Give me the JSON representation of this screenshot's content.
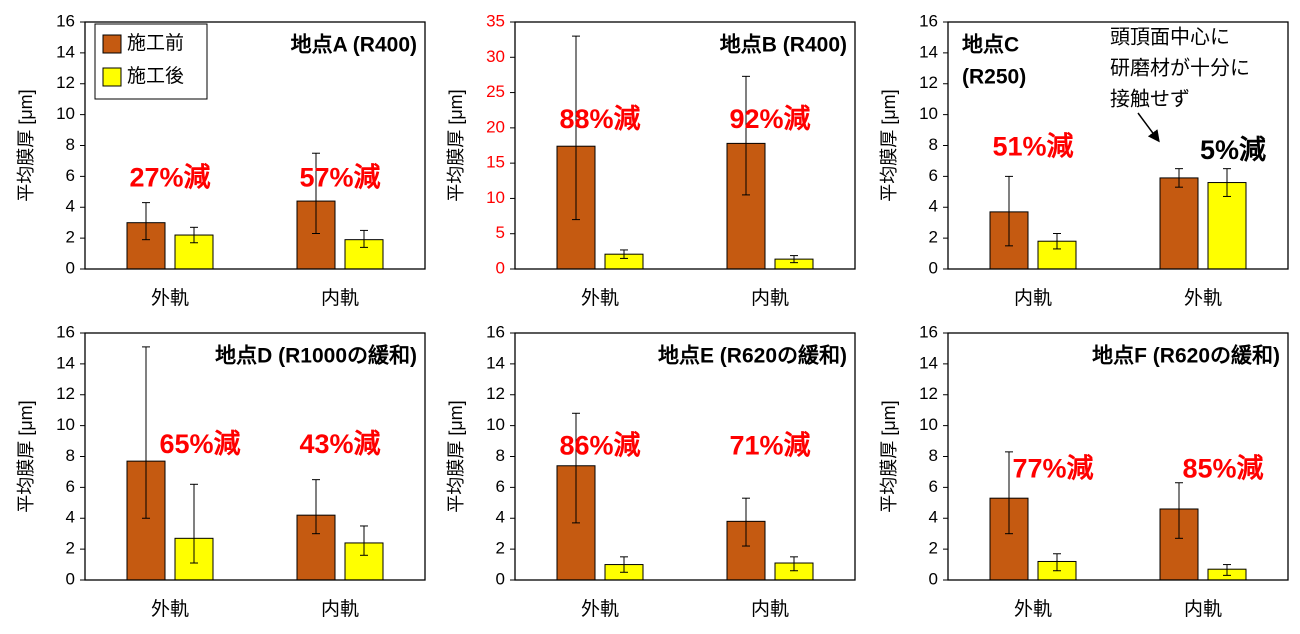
{
  "chart_data": [
    {
      "type": "bar",
      "title": "地点A (R400)",
      "ylabel": "平均膜厚 [μm]",
      "categories": [
        "外軌",
        "内軌"
      ],
      "series": [
        {
          "name": "施工前",
          "color": "#c55a11",
          "values": [
            3.0,
            4.4
          ],
          "error_low": [
            1.9,
            2.3
          ],
          "error_high": [
            4.3,
            7.5
          ]
        },
        {
          "name": "施工後",
          "color": "#ffff00",
          "values": [
            2.2,
            1.9
          ],
          "error_low": [
            1.7,
            1.4
          ],
          "error_high": [
            2.7,
            2.5
          ]
        }
      ],
      "reduction_labels": [
        "27%減",
        "57%減"
      ],
      "reduction_colors": [
        "#ff0000",
        "#ff0000"
      ],
      "ylim": [
        0,
        16
      ],
      "yticks": [
        0,
        2,
        4,
        6,
        8,
        10,
        12,
        14,
        16
      ],
      "tick_color": "#000000",
      "legend": "top-left"
    },
    {
      "type": "bar",
      "title": "地点B (R400)",
      "ylabel": "平均膜厚 [μm]",
      "categories": [
        "外軌",
        "内軌"
      ],
      "series": [
        {
          "name": "施工前",
          "color": "#c55a11",
          "values": [
            17.4,
            17.8
          ],
          "error_low": [
            7.0,
            10.5
          ],
          "error_high": [
            33.0,
            27.3
          ]
        },
        {
          "name": "施工後",
          "color": "#ffff00",
          "values": [
            2.1,
            1.4
          ],
          "error_low": [
            1.5,
            0.9
          ],
          "error_high": [
            2.7,
            1.9
          ]
        }
      ],
      "reduction_labels": [
        "88%減",
        "92%減"
      ],
      "reduction_colors": [
        "#ff0000",
        "#ff0000"
      ],
      "ylim": [
        0,
        35
      ],
      "yticks": [
        0,
        5,
        10,
        15,
        20,
        25,
        30,
        35
      ],
      "tick_color": "#ff0000"
    },
    {
      "type": "bar",
      "title": [
        "地点C",
        "(R250)"
      ],
      "ylabel": "平均膜厚 [μm]",
      "categories": [
        "内軌",
        "外軌"
      ],
      "series": [
        {
          "name": "施工前",
          "color": "#c55a11",
          "values": [
            3.7,
            5.9
          ],
          "error_low": [
            1.5,
            5.3
          ],
          "error_high": [
            6.0,
            6.5
          ]
        },
        {
          "name": "施工後",
          "color": "#ffff00",
          "values": [
            1.8,
            5.6
          ],
          "error_low": [
            1.3,
            4.7
          ],
          "error_high": [
            2.3,
            6.5
          ]
        }
      ],
      "reduction_labels": [
        "51%減",
        "5%減"
      ],
      "reduction_colors": [
        "#ff0000",
        "#000000"
      ],
      "annotation": [
        "頭頂面中心に",
        "研磨材が十分に",
        "接触せず"
      ],
      "ylim": [
        0,
        16
      ],
      "yticks": [
        0,
        2,
        4,
        6,
        8,
        10,
        12,
        14,
        16
      ],
      "tick_color": "#000000"
    },
    {
      "type": "bar",
      "title": "地点D (R1000の緩和)",
      "ylabel": "平均膜厚 [μm]",
      "categories": [
        "外軌",
        "内軌"
      ],
      "series": [
        {
          "name": "施工前",
          "color": "#c55a11",
          "values": [
            7.7,
            4.2
          ],
          "error_low": [
            4.0,
            3.0
          ],
          "error_high": [
            15.1,
            6.5
          ]
        },
        {
          "name": "施工後",
          "color": "#ffff00",
          "values": [
            2.7,
            2.4
          ],
          "error_low": [
            1.1,
            1.6
          ],
          "error_high": [
            6.2,
            3.5
          ]
        }
      ],
      "reduction_labels": [
        "65%減",
        "43%減"
      ],
      "reduction_colors": [
        "#ff0000",
        "#ff0000"
      ],
      "ylim": [
        0,
        16
      ],
      "yticks": [
        0,
        2,
        4,
        6,
        8,
        10,
        12,
        14,
        16
      ],
      "tick_color": "#000000"
    },
    {
      "type": "bar",
      "title": "地点E (R620の緩和)",
      "ylabel": "平均膜厚 [μm]",
      "categories": [
        "外軌",
        "内軌"
      ],
      "series": [
        {
          "name": "施工前",
          "color": "#c55a11",
          "values": [
            7.4,
            3.8
          ],
          "error_low": [
            3.7,
            2.2
          ],
          "error_high": [
            10.8,
            5.3
          ]
        },
        {
          "name": "施工後",
          "color": "#ffff00",
          "values": [
            1.0,
            1.1
          ],
          "error_low": [
            0.5,
            0.6
          ],
          "error_high": [
            1.5,
            1.5
          ]
        }
      ],
      "reduction_labels": [
        "86%減",
        "71%減"
      ],
      "reduction_colors": [
        "#ff0000",
        "#ff0000"
      ],
      "ylim": [
        0,
        16
      ],
      "yticks": [
        0,
        2,
        4,
        6,
        8,
        10,
        12,
        14,
        16
      ],
      "tick_color": "#000000"
    },
    {
      "type": "bar",
      "title": "地点F (R620の緩和)",
      "ylabel": "平均膜厚 [μm]",
      "categories": [
        "外軌",
        "内軌"
      ],
      "series": [
        {
          "name": "施工前",
          "color": "#c55a11",
          "values": [
            5.3,
            4.6
          ],
          "error_low": [
            3.0,
            2.7
          ],
          "error_high": [
            8.3,
            6.3
          ]
        },
        {
          "name": "施工後",
          "color": "#ffff00",
          "values": [
            1.2,
            0.7
          ],
          "error_low": [
            0.6,
            0.3
          ],
          "error_high": [
            1.7,
            1.0
          ]
        }
      ],
      "reduction_labels": [
        "77%減",
        "85%減"
      ],
      "reduction_colors": [
        "#ff0000",
        "#ff0000"
      ],
      "ylim": [
        0,
        16
      ],
      "yticks": [
        0,
        2,
        4,
        6,
        8,
        10,
        12,
        14,
        16
      ],
      "tick_color": "#000000"
    }
  ]
}
